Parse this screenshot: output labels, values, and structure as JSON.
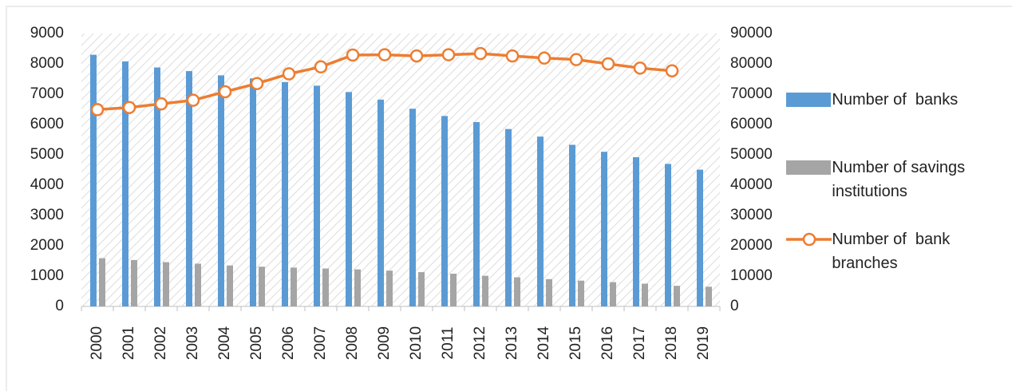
{
  "chart_data": {
    "type": "bar-line",
    "categories": [
      "2000",
      "2001",
      "2002",
      "2003",
      "2004",
      "2005",
      "2006",
      "2007",
      "2008",
      "2009",
      "2010",
      "2011",
      "2012",
      "2013",
      "2014",
      "2015",
      "2016",
      "2017",
      "2018",
      "2019"
    ],
    "series": [
      {
        "name": "Number of  banks",
        "type": "bar",
        "color": "#5b9bd5",
        "values": [
          8300,
          8080,
          7880,
          7760,
          7620,
          7520,
          7400,
          7280,
          7070,
          6820,
          6520,
          6280,
          6080,
          5850,
          5600,
          5330,
          5100,
          4920,
          4700,
          4510
        ]
      },
      {
        "name": "Number of savings institutions",
        "type": "bar",
        "color": "#a5a5a5",
        "values": [
          1590,
          1530,
          1460,
          1410,
          1350,
          1310,
          1280,
          1250,
          1220,
          1180,
          1130,
          1080,
          1010,
          960,
          900,
          850,
          800,
          750,
          680,
          650
        ]
      },
      {
        "name": "Number of  bank branches",
        "type": "line",
        "axis": "y2",
        "color": "#ed7d31",
        "values": [
          64900,
          65600,
          66800,
          68000,
          70800,
          73500,
          76700,
          79000,
          82900,
          83000,
          82600,
          83000,
          83400,
          82600,
          81900,
          81400,
          80000,
          78600,
          77700,
          null
        ]
      }
    ],
    "ylim": [
      0,
      9000
    ],
    "yticks": [
      0,
      1000,
      2000,
      3000,
      4000,
      5000,
      6000,
      7000,
      8000,
      9000
    ],
    "y2lim": [
      0,
      90000
    ],
    "y2ticks": [
      0,
      10000,
      20000,
      30000,
      40000,
      50000,
      60000,
      70000,
      80000,
      90000
    ]
  }
}
